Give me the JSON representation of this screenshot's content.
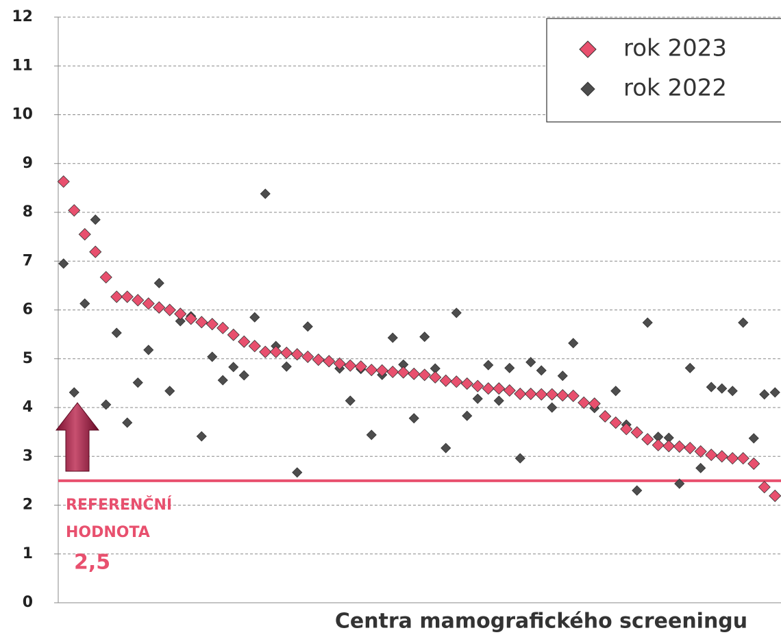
{
  "chart_data": {
    "type": "scatter",
    "x_label": "Centra mamografického screeningu",
    "categories": [
      null,
      null,
      null,
      null,
      null,
      null,
      null,
      null,
      null,
      null,
      null,
      null,
      null,
      null,
      null,
      null,
      null,
      null,
      null,
      null,
      null,
      null,
      null,
      null,
      null,
      null,
      null,
      null,
      null,
      null,
      null,
      null,
      null,
      null,
      null,
      null,
      null,
      null,
      null,
      null,
      null,
      null,
      null,
      null,
      null,
      null,
      null,
      null,
      null,
      null,
      null,
      null,
      null,
      null,
      null,
      null,
      null,
      null,
      null,
      null,
      null,
      null,
      null,
      null,
      null,
      null,
      null,
      null
    ],
    "series": [
      {
        "name": "rok 2023",
        "color": "#e8506e",
        "values": [
          8.63,
          8.04,
          7.55,
          7.19,
          6.67,
          6.27,
          6.27,
          6.2,
          6.13,
          6.05,
          6.0,
          5.92,
          5.82,
          5.75,
          5.71,
          5.63,
          5.49,
          5.35,
          5.26,
          5.14,
          5.14,
          5.12,
          5.09,
          5.04,
          4.98,
          4.95,
          4.9,
          4.86,
          4.84,
          4.77,
          4.76,
          4.73,
          4.72,
          4.69,
          4.67,
          4.62,
          4.55,
          4.53,
          4.49,
          4.44,
          4.39,
          4.39,
          4.35,
          4.28,
          4.28,
          4.27,
          4.27,
          4.25,
          4.24,
          4.1,
          4.08,
          3.82,
          3.69,
          3.56,
          3.49,
          3.35,
          3.23,
          3.21,
          3.2,
          3.17,
          3.1,
          3.03,
          3.0,
          2.96,
          2.96,
          2.85,
          2.37,
          2.19
        ]
      },
      {
        "name": "rok 2022",
        "color": "#4d4d4d",
        "values": [
          6.95,
          4.31,
          6.13,
          7.85,
          4.06,
          5.53,
          3.69,
          4.51,
          5.18,
          6.55,
          4.34,
          5.77,
          5.87,
          3.41,
          5.04,
          4.56,
          4.83,
          4.66,
          5.85,
          8.38,
          5.26,
          4.84,
          2.67,
          5.66,
          4.97,
          4.93,
          4.8,
          4.14,
          4.79,
          3.44,
          4.67,
          5.43,
          4.88,
          3.78,
          5.45,
          4.8,
          3.17,
          5.94,
          3.83,
          4.18,
          4.87,
          4.14,
          4.81,
          2.96,
          4.93,
          4.76,
          4.0,
          4.65,
          5.32,
          4.1,
          3.99,
          3.82,
          4.34,
          3.65,
          2.3,
          5.74,
          3.4,
          3.38,
          2.44,
          4.81,
          2.76,
          4.42,
          4.39,
          4.34,
          5.74,
          3.37,
          4.27,
          4.31
        ]
      }
    ],
    "ylim": [
      0,
      12
    ],
    "yticks": [
      0,
      1,
      2,
      3,
      4,
      5,
      6,
      7,
      8,
      9,
      10,
      11,
      12
    ],
    "grid": true,
    "legend": "upper right",
    "reference_line": {
      "value": 2.5,
      "label": "2,5",
      "color": "#e8506e"
    },
    "annotation": [
      "REFERENČNÍ",
      "HODNOTA"
    ]
  }
}
